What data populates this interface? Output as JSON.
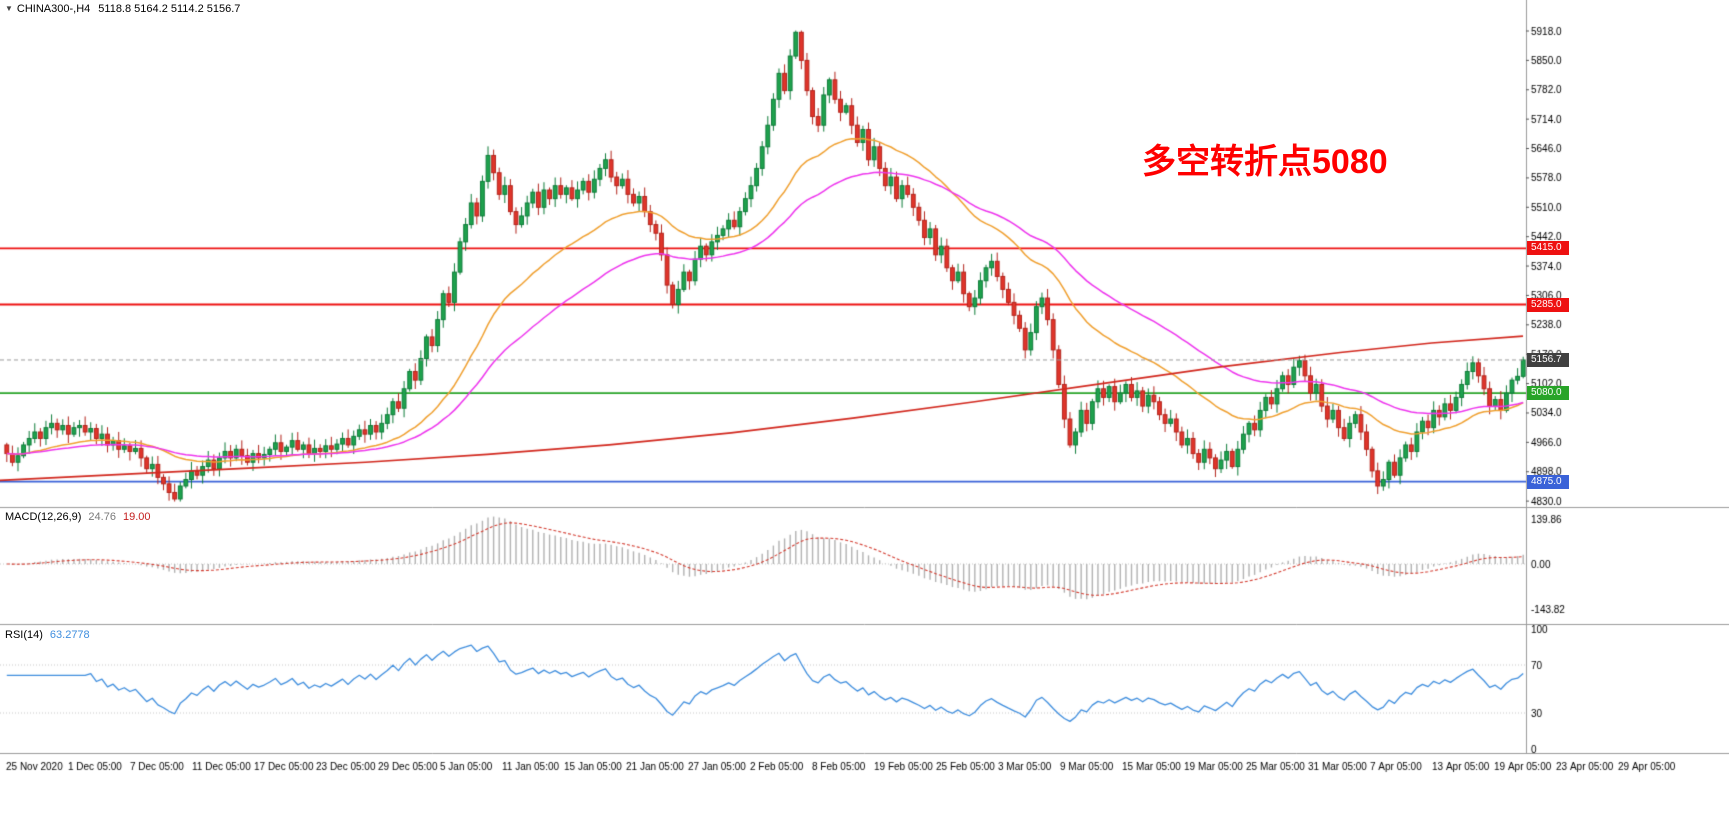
{
  "header": {
    "symbol_period": "CHINA300-,H4",
    "ohlc": "5118.8 5164.2 5114.2 5156.7"
  },
  "annotation": {
    "text": "多空转折点5080",
    "color": "#ff0000"
  },
  "macd_panel": {
    "label": "MACD(12,26,9)",
    "main_value": "24.76",
    "signal_value": "19.00",
    "axis": [
      "139.86",
      "0.00",
      "-143.82"
    ]
  },
  "rsi_panel": {
    "label": "RSI(14)",
    "value": "63.2778",
    "axis": [
      "100",
      "70",
      "30",
      "0"
    ],
    "levels": [
      70,
      30
    ]
  },
  "chart_data": {
    "type": "candlestick",
    "symbol": "CHINA300-",
    "timeframe": "H4",
    "current_bar": {
      "open": 5118.8,
      "high": 5164.2,
      "low": 5114.2,
      "close": 5156.7
    },
    "first_open": 4960,
    "price_range": {
      "top_label": 5918.0,
      "bottom_label": 4830.0
    },
    "closes": [
      4940,
      4920,
      4935,
      4960,
      4975,
      4990,
      4975,
      5000,
      5010,
      4995,
      5005,
      4985,
      5000,
      5005,
      4990,
      4998,
      4975,
      4985,
      4960,
      4970,
      4950,
      4958,
      4945,
      4952,
      4930,
      4905,
      4915,
      4885,
      4870,
      4850,
      4835,
      4865,
      4880,
      4900,
      4890,
      4910,
      4925,
      4905,
      4930,
      4945,
      4930,
      4950,
      4935,
      4920,
      4940,
      4930,
      4938,
      4950,
      4965,
      4945,
      4955,
      4970,
      4950,
      4960,
      4940,
      4952,
      4945,
      4958,
      4950,
      4962,
      4975,
      4960,
      4980,
      4995,
      4985,
      5005,
      4990,
      5010,
      5030,
      5060,
      5045,
      5090,
      5130,
      5110,
      5160,
      5210,
      5190,
      5250,
      5310,
      5290,
      5360,
      5430,
      5470,
      5520,
      5490,
      5570,
      5630,
      5590,
      5540,
      5560,
      5500,
      5470,
      5490,
      5520,
      5545,
      5510,
      5550,
      5530,
      5560,
      5540,
      5555,
      5530,
      5550,
      5570,
      5545,
      5575,
      5600,
      5620,
      5580,
      5560,
      5575,
      5540,
      5520,
      5535,
      5500,
      5470,
      5450,
      5400,
      5330,
      5285,
      5320,
      5360,
      5340,
      5390,
      5420,
      5400,
      5430,
      5445,
      5460,
      5480,
      5465,
      5500,
      5530,
      5560,
      5600,
      5650,
      5700,
      5760,
      5820,
      5780,
      5860,
      5915,
      5850,
      5780,
      5720,
      5700,
      5770,
      5805,
      5760,
      5730,
      5745,
      5700,
      5660,
      5690,
      5620,
      5650,
      5600,
      5560,
      5580,
      5530,
      5560,
      5540,
      5510,
      5480,
      5440,
      5460,
      5400,
      5420,
      5370,
      5340,
      5360,
      5310,
      5280,
      5300,
      5340,
      5370,
      5385,
      5350,
      5320,
      5290,
      5260,
      5230,
      5180,
      5220,
      5280,
      5300,
      5250,
      5180,
      5100,
      5020,
      4960,
      4990,
      5040,
      5010,
      5060,
      5090,
      5070,
      5095,
      5060,
      5080,
      5100,
      5070,
      5085,
      5050,
      5075,
      5060,
      5030,
      5010,
      5020,
      4990,
      4960,
      4975,
      4940,
      4920,
      4950,
      4930,
      4905,
      4925,
      4945,
      4910,
      4950,
      4985,
      5010,
      4995,
      5040,
      5070,
      5055,
      5090,
      5120,
      5100,
      5140,
      5155,
      5120,
      5080,
      5100,
      5050,
      5020,
      5040,
      5000,
      4975,
      5010,
      5030,
      4990,
      4950,
      4900,
      4865,
      4880,
      4920,
      4890,
      4930,
      4960,
      4945,
      4990,
      5015,
      5000,
      5040,
      5025,
      5055,
      5040,
      5070,
      5100,
      5130,
      5150,
      5120,
      5090,
      5050,
      5065,
      5040,
      5080,
      5110,
      5118.8,
      5156.7
    ],
    "moving_averages": [
      {
        "name": "fast-ma",
        "type": "ema",
        "period": 30,
        "color": "#f0a030"
      },
      {
        "name": "medium-ma",
        "type": "ema",
        "period": 55,
        "color": "#ee35ee"
      },
      {
        "name": "slow-ma",
        "type": "anchors",
        "color": "#d2281e",
        "anchors": [
          [
            0,
            4878
          ],
          [
            0.08,
            4892
          ],
          [
            0.16,
            4906
          ],
          [
            0.24,
            4920
          ],
          [
            0.32,
            4938
          ],
          [
            0.4,
            4960
          ],
          [
            0.48,
            4988
          ],
          [
            0.56,
            5022
          ],
          [
            0.64,
            5060
          ],
          [
            0.72,
            5100
          ],
          [
            0.8,
            5140
          ],
          [
            0.88,
            5174
          ],
          [
            0.94,
            5196
          ],
          [
            1,
            5212
          ]
        ]
      }
    ],
    "horizontal_lines": [
      {
        "price": 5415.0,
        "label": "5415.0",
        "color": "#ee1111"
      },
      {
        "price": 5285.0,
        "label": "5285.0",
        "color": "#ee1111"
      },
      {
        "price": 5080.0,
        "label": "5080.0",
        "color": "#28a428"
      },
      {
        "price": 4875.0,
        "label": "4875.0",
        "color": "#3a62d8"
      }
    ],
    "current_price_line": {
      "price": 5156.7,
      "label": "5156.7",
      "color": "#404040"
    },
    "price_axis_labels": [
      "5918.0",
      "5850.0",
      "5782.0",
      "5714.0",
      "5646.0",
      "5578.0",
      "5510.0",
      "5442.0",
      "5374.0",
      "5306.0",
      "5238.0",
      "5170.0",
      "5102.0",
      "5034.0",
      "4966.0",
      "4898.0",
      "4830.0"
    ],
    "time_axis_labels": [
      "25 Nov 2020",
      "1 Dec 05:00",
      "7 Dec 05:00",
      "11 Dec 05:00",
      "17 Dec 05:00",
      "23 Dec 05:00",
      "29 Dec 05:00",
      "5 Jan 05:00",
      "11 Jan 05:00",
      "15 Jan 05:00",
      "21 Jan 05:00",
      "27 Jan 05:00",
      "2 Feb 05:00",
      "8 Feb 05:00",
      "19 Feb 05:00",
      "25 Feb 05:00",
      "3 Mar 05:00",
      "9 Mar 05:00",
      "15 Mar 05:00",
      "19 Mar 05:00",
      "25 Mar 05:00",
      "31 Mar 05:00",
      "7 Apr 05:00",
      "13 Apr 05:00",
      "19 Apr 05:00",
      "23 Apr 05:00",
      "29 Apr 05:00"
    ],
    "indicators": {
      "macd": {
        "params": [
          12,
          26,
          9
        ],
        "last_main": 24.76,
        "last_signal": 19.0,
        "axis_max": 139.86,
        "axis_min": -143.82
      },
      "rsi": {
        "params": [
          14
        ],
        "last": 63.2778,
        "range": [
          0,
          100
        ],
        "levels": [
          70,
          30
        ]
      }
    },
    "colors": {
      "bull": "#1fa24e",
      "bull_stroke": "#0e7c39",
      "bear": "#e0352b",
      "bear_stroke": "#b3241c",
      "macd_hist": "#b2b2b2",
      "macd_signal": "#d43c30",
      "rsi": "#3f8ede",
      "current_line": "#9a9a9a",
      "separator": "#9a9a9a",
      "axis_text": "#000000"
    }
  }
}
